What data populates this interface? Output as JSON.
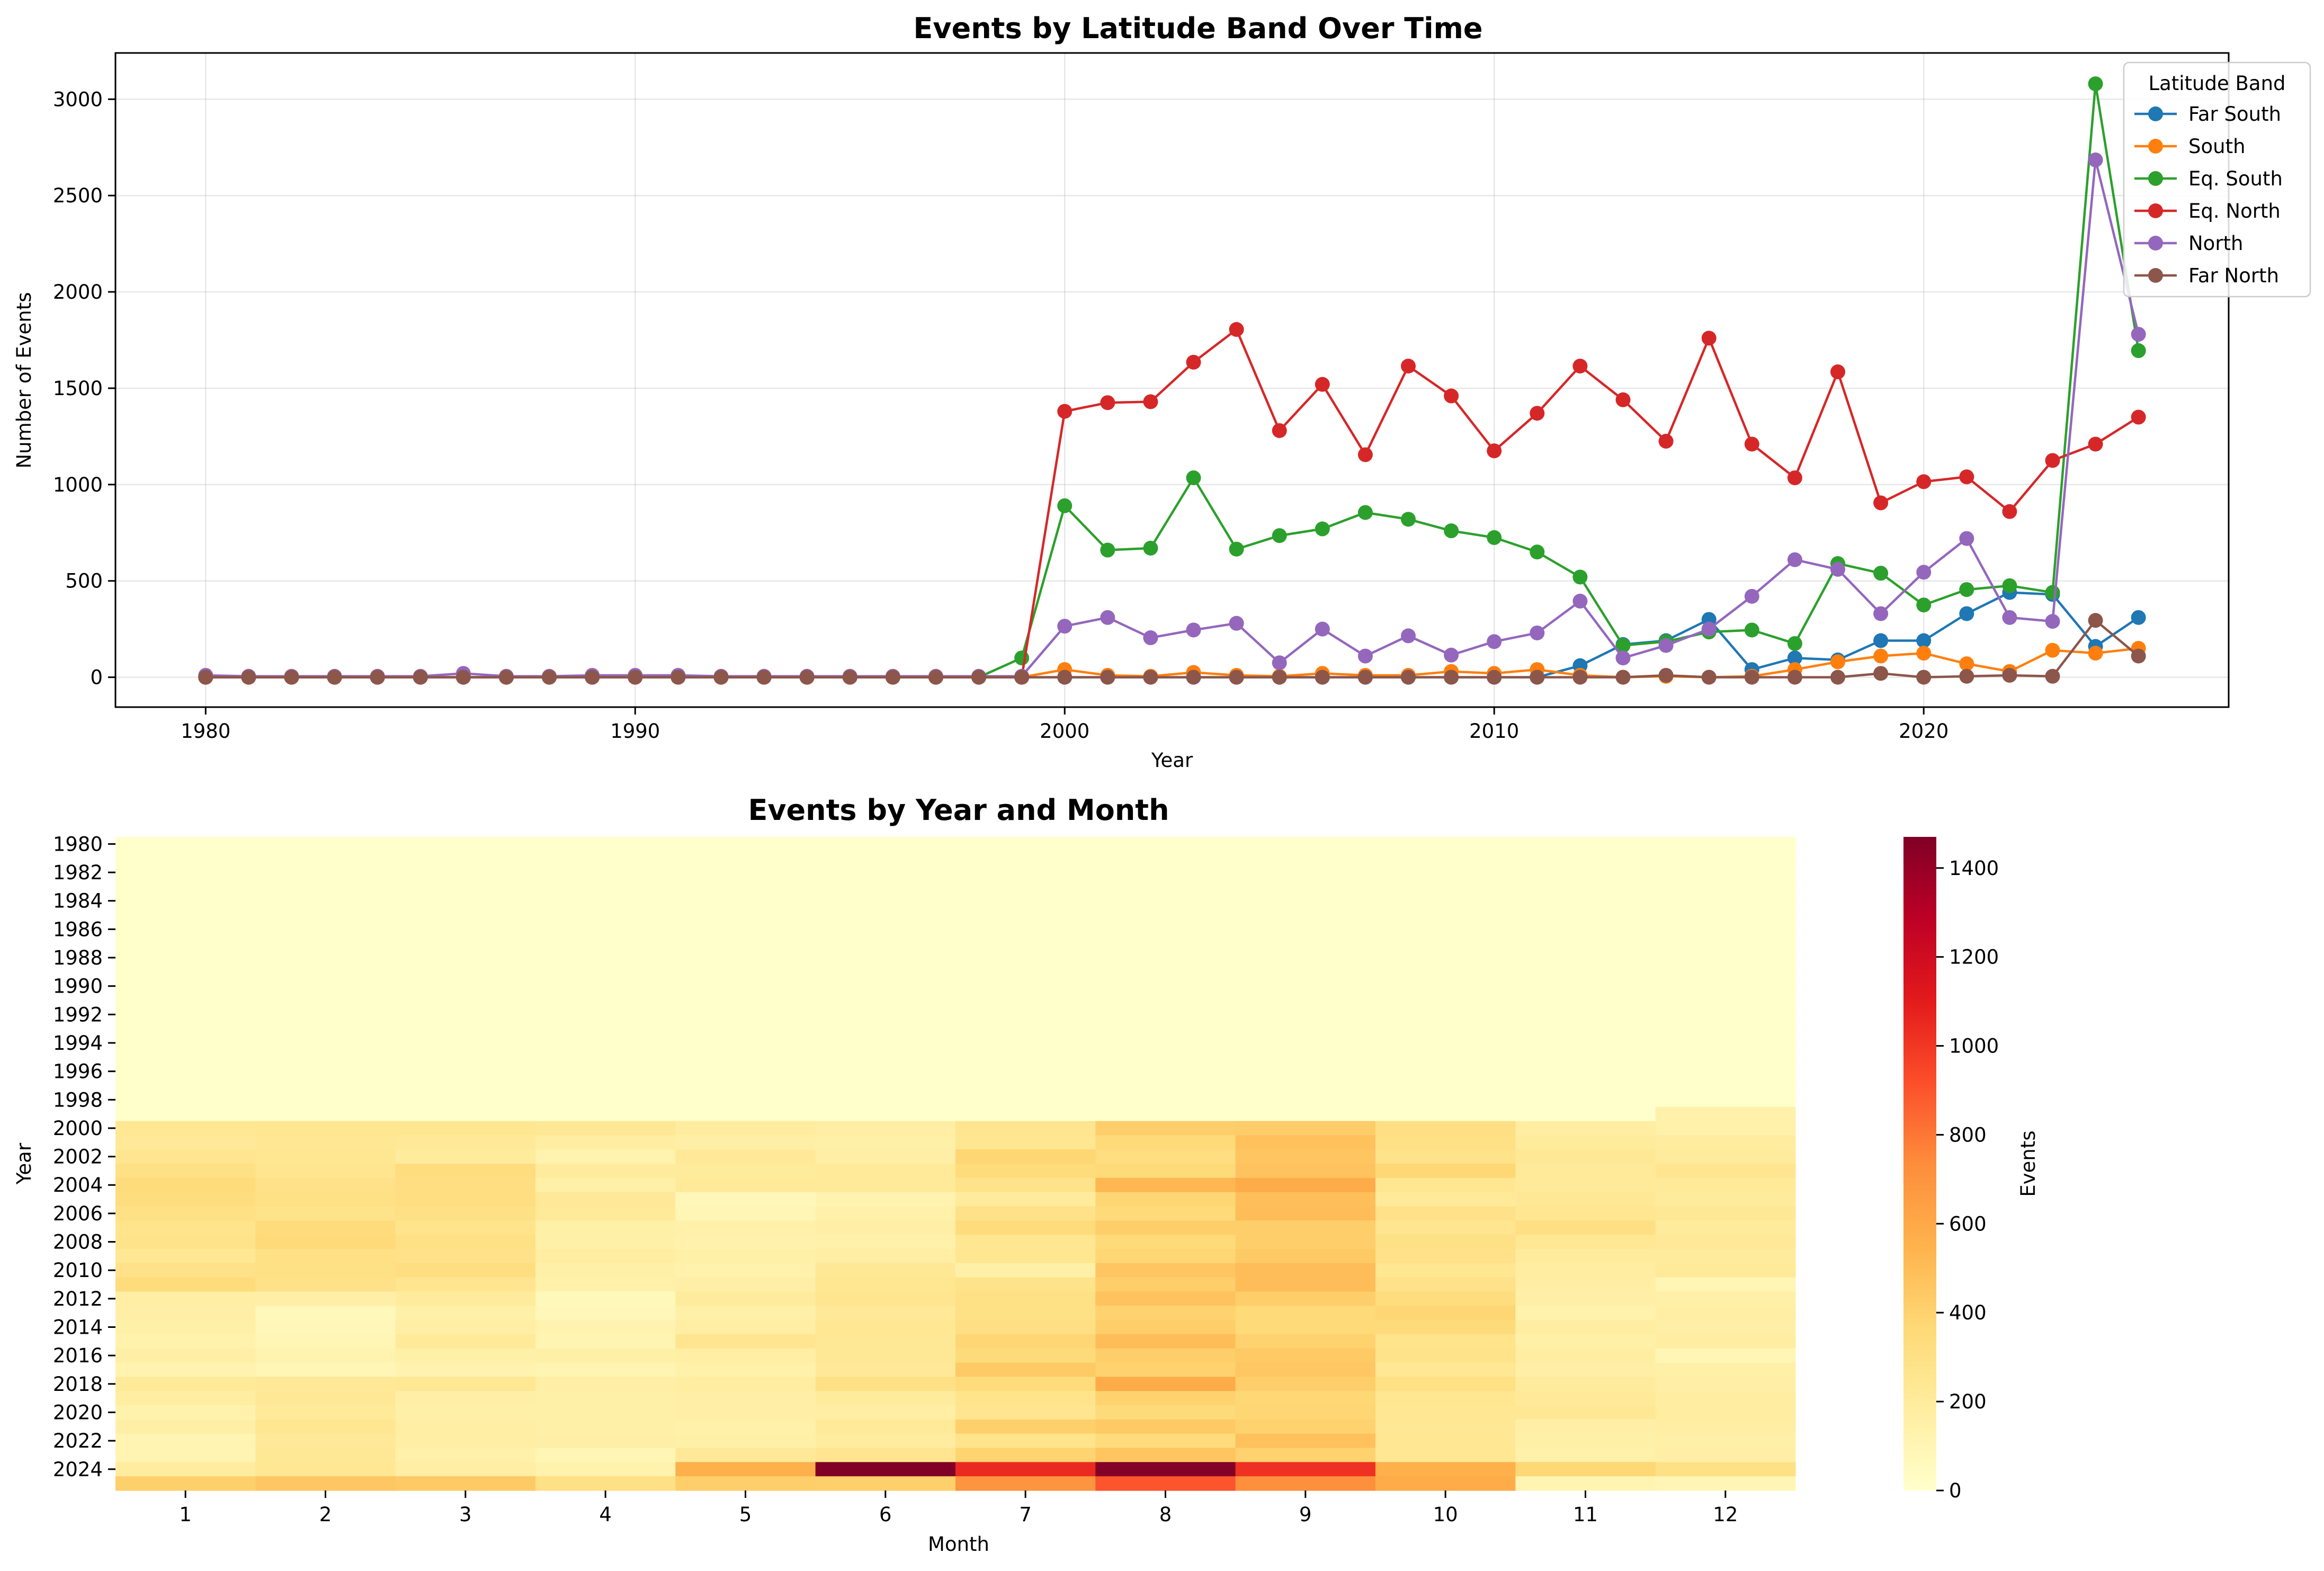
{
  "chart_data": [
    {
      "type": "line",
      "title": "Events by Latitude Band Over Time",
      "xlabel": "Year",
      "ylabel": "Number of Events",
      "xlim": [
        1977.9,
        2027.1
      ],
      "ylim": [
        -155,
        3240
      ],
      "xticks": [
        1980,
        1990,
        2000,
        2010,
        2020
      ],
      "yticks": [
        0,
        500,
        1000,
        1500,
        2000,
        2500,
        3000
      ],
      "grid": true,
      "legend": {
        "title": "Latitude Band",
        "placement": "top-right"
      },
      "x": [
        1980,
        1981,
        1982,
        1983,
        1984,
        1985,
        1986,
        1987,
        1988,
        1989,
        1990,
        1991,
        1992,
        1993,
        1994,
        1995,
        1996,
        1997,
        1998,
        1999,
        2000,
        2001,
        2002,
        2003,
        2004,
        2005,
        2006,
        2007,
        2008,
        2009,
        2010,
        2011,
        2012,
        2013,
        2014,
        2015,
        2016,
        2017,
        2018,
        2019,
        2020,
        2021,
        2022,
        2023,
        2024,
        2025
      ],
      "series": [
        {
          "name": "Far South",
          "color": "#1f77b4",
          "values": [
            0,
            0,
            0,
            0,
            0,
            0,
            0,
            0,
            0,
            0,
            0,
            0,
            0,
            0,
            0,
            0,
            0,
            0,
            0,
            0,
            0,
            0,
            0,
            0,
            0,
            0,
            0,
            0,
            0,
            0,
            0,
            0,
            60,
            170,
            190,
            300,
            40,
            100,
            90,
            190,
            190,
            330,
            440,
            430,
            160,
            310
          ]
        },
        {
          "name": "South",
          "color": "#ff7f0e",
          "values": [
            0,
            0,
            0,
            0,
            0,
            0,
            0,
            0,
            0,
            0,
            0,
            0,
            0,
            0,
            0,
            0,
            0,
            0,
            0,
            0,
            40,
            10,
            5,
            25,
            10,
            5,
            20,
            10,
            10,
            30,
            20,
            40,
            10,
            0,
            5,
            0,
            5,
            40,
            80,
            110,
            125,
            70,
            30,
            140,
            125,
            150
          ]
        },
        {
          "name": "Eq. South",
          "color": "#2ca02c",
          "values": [
            0,
            0,
            0,
            0,
            0,
            0,
            0,
            0,
            0,
            0,
            0,
            0,
            0,
            0,
            0,
            0,
            0,
            0,
            0,
            100,
            890,
            660,
            670,
            1035,
            665,
            735,
            770,
            855,
            820,
            760,
            725,
            650,
            520,
            165,
            185,
            235,
            245,
            175,
            590,
            540,
            375,
            455,
            475,
            440,
            3080,
            1695
          ]
        },
        {
          "name": "Eq. North",
          "color": "#d62728",
          "values": [
            0,
            0,
            0,
            0,
            0,
            0,
            0,
            0,
            0,
            0,
            0,
            0,
            0,
            0,
            0,
            0,
            0,
            0,
            0,
            0,
            1380,
            1425,
            1430,
            1635,
            1805,
            1280,
            1520,
            1155,
            1615,
            1460,
            1175,
            1370,
            1615,
            1440,
            1225,
            1760,
            1210,
            1035,
            1585,
            905,
            1015,
            1040,
            860,
            1125,
            1210,
            1350
          ]
        },
        {
          "name": "North",
          "color": "#9467bd",
          "values": [
            10,
            5,
            5,
            5,
            5,
            5,
            20,
            5,
            5,
            10,
            10,
            10,
            5,
            5,
            5,
            5,
            5,
            5,
            5,
            5,
            265,
            310,
            205,
            245,
            280,
            75,
            250,
            110,
            215,
            115,
            185,
            230,
            395,
            100,
            165,
            250,
            420,
            610,
            560,
            330,
            545,
            720,
            310,
            290,
            2685,
            1780
          ]
        },
        {
          "name": "Far North",
          "color": "#8c564b",
          "values": [
            0,
            0,
            0,
            0,
            0,
            0,
            0,
            0,
            0,
            0,
            0,
            0,
            0,
            0,
            0,
            0,
            0,
            0,
            0,
            0,
            0,
            0,
            0,
            0,
            0,
            0,
            0,
            0,
            0,
            0,
            0,
            0,
            0,
            0,
            10,
            0,
            0,
            0,
            0,
            20,
            0,
            5,
            10,
            5,
            295,
            110
          ]
        }
      ]
    },
    {
      "type": "heatmap",
      "title": "Events by Year and Month",
      "xlabel": "Month",
      "ylabel": "Year",
      "months": [
        "1",
        "2",
        "3",
        "4",
        "5",
        "6",
        "7",
        "8",
        "9",
        "10",
        "11",
        "12"
      ],
      "year_start": 1980,
      "year_end": 2025,
      "yticks": [
        "1980",
        "1982",
        "1984",
        "1986",
        "1988",
        "1990",
        "1992",
        "1994",
        "1996",
        "1998",
        "2000",
        "2002",
        "2004",
        "2006",
        "2008",
        "2010",
        "2012",
        "2014",
        "2016",
        "2018",
        "2020",
        "2022",
        "2024"
      ],
      "colorbar": {
        "label": "Events",
        "min": 0,
        "max": 1470,
        "ticks": [
          "0",
          "200",
          "400",
          "600",
          "800",
          "1000",
          "1200",
          "1400"
        ]
      },
      "rows_2000_to_2025": [
        [
          240,
          250,
          250,
          230,
          190,
          170,
          260,
          420,
          430,
          310,
          180,
          140
        ],
        [
          220,
          240,
          220,
          180,
          160,
          150,
          250,
          360,
          480,
          300,
          200,
          190
        ],
        [
          260,
          250,
          200,
          120,
          220,
          160,
          380,
          320,
          460,
          280,
          230,
          200
        ],
        [
          300,
          260,
          330,
          200,
          200,
          210,
          340,
          360,
          470,
          370,
          210,
          260
        ],
        [
          340,
          290,
          320,
          150,
          210,
          210,
          280,
          530,
          580,
          250,
          210,
          210
        ],
        [
          330,
          300,
          320,
          220,
          80,
          120,
          200,
          380,
          490,
          210,
          230,
          200
        ],
        [
          300,
          280,
          300,
          210,
          100,
          140,
          290,
          360,
          500,
          290,
          250,
          230
        ],
        [
          270,
          340,
          270,
          150,
          140,
          160,
          340,
          420,
          420,
          260,
          310,
          200
        ],
        [
          280,
          360,
          300,
          150,
          130,
          140,
          250,
          360,
          420,
          300,
          240,
          220
        ],
        [
          240,
          300,
          290,
          180,
          150,
          170,
          250,
          380,
          440,
          290,
          200,
          200
        ],
        [
          290,
          300,
          320,
          150,
          130,
          230,
          150,
          460,
          500,
          250,
          180,
          210
        ],
        [
          340,
          290,
          260,
          140,
          160,
          250,
          280,
          420,
          500,
          290,
          170,
          100
        ],
        [
          170,
          160,
          200,
          70,
          200,
          260,
          300,
          470,
          420,
          330,
          160,
          150
        ],
        [
          160,
          70,
          150,
          80,
          150,
          220,
          300,
          400,
          360,
          380,
          130,
          170
        ],
        [
          150,
          80,
          170,
          120,
          170,
          240,
          310,
          420,
          360,
          350,
          180,
          160
        ],
        [
          130,
          100,
          210,
          110,
          260,
          230,
          380,
          500,
          400,
          270,
          150,
          180
        ],
        [
          160,
          120,
          150,
          150,
          170,
          230,
          350,
          420,
          440,
          280,
          180,
          90
        ],
        [
          120,
          90,
          120,
          110,
          140,
          220,
          440,
          400,
          450,
          240,
          160,
          150
        ],
        [
          210,
          220,
          240,
          160,
          180,
          300,
          340,
          580,
          420,
          300,
          200,
          160
        ],
        [
          180,
          230,
          160,
          150,
          160,
          200,
          270,
          400,
          370,
          250,
          210,
          180
        ],
        [
          130,
          210,
          150,
          150,
          160,
          170,
          260,
          350,
          380,
          240,
          230,
          180
        ],
        [
          160,
          250,
          170,
          150,
          140,
          210,
          410,
          440,
          400,
          230,
          160,
          170
        ],
        [
          110,
          220,
          170,
          160,
          150,
          190,
          270,
          340,
          480,
          240,
          150,
          150
        ],
        [
          110,
          230,
          140,
          90,
          220,
          260,
          390,
          460,
          400,
          240,
          140,
          160
        ],
        [
          190,
          240,
          170,
          130,
          560,
          1470,
          1050,
          1460,
          1020,
          560,
          370,
          300
        ],
        [
          410,
          450,
          440,
          300,
          420,
          410,
          700,
          900,
          720,
          580,
          110,
          90
        ]
      ]
    }
  ]
}
